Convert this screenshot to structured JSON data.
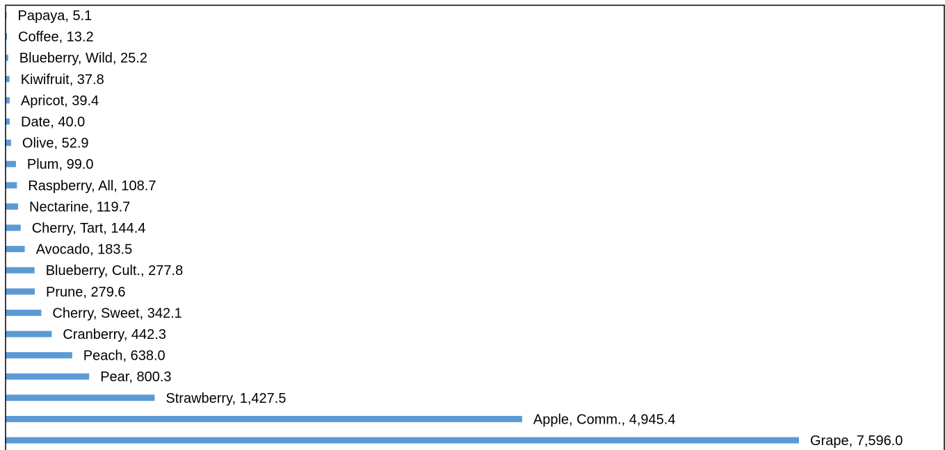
{
  "chart_data": {
    "type": "bar",
    "orientation": "horizontal",
    "title": "",
    "xlabel": "",
    "ylabel": "",
    "grid": false,
    "legend": "none",
    "bar_color": "#5B9BD5",
    "xlim": [
      0,
      7596.0
    ],
    "bars": [
      {
        "category": "Papaya",
        "value": 5.1,
        "label": "Papaya,  5.1"
      },
      {
        "category": "Coffee",
        "value": 13.2,
        "label": "Coffee,  13.2"
      },
      {
        "category": "Blueberry, Wild",
        "value": 25.2,
        "label": "Blueberry, Wild,  25.2"
      },
      {
        "category": "Kiwifruit",
        "value": 37.8,
        "label": "Kiwifruit,  37.8"
      },
      {
        "category": "Apricot",
        "value": 39.4,
        "label": "Apricot,  39.4"
      },
      {
        "category": "Date",
        "value": 40.0,
        "label": "Date,  40.0"
      },
      {
        "category": "Olive",
        "value": 52.9,
        "label": "Olive,  52.9"
      },
      {
        "category": "Plum",
        "value": 99.0,
        "label": "Plum,  99.0"
      },
      {
        "category": "Raspberry, All",
        "value": 108.7,
        "label": "Raspberry, All,  108.7"
      },
      {
        "category": "Nectarine",
        "value": 119.7,
        "label": "Nectarine,  119.7"
      },
      {
        "category": "Cherry, Tart",
        "value": 144.4,
        "label": "Cherry, Tart,  144.4"
      },
      {
        "category": "Avocado",
        "value": 183.5,
        "label": "Avocado,  183.5"
      },
      {
        "category": "Blueberry, Cult.",
        "value": 277.8,
        "label": "Blueberry, Cult.,  277.8"
      },
      {
        "category": "Prune",
        "value": 279.6,
        "label": "Prune,  279.6"
      },
      {
        "category": "Cherry, Sweet",
        "value": 342.1,
        "label": "Cherry, Sweet,  342.1"
      },
      {
        "category": "Cranberry",
        "value": 442.3,
        "label": "Cranberry,  442.3"
      },
      {
        "category": "Peach",
        "value": 638.0,
        "label": "Peach,  638.0"
      },
      {
        "category": "Pear",
        "value": 800.3,
        "label": "Pear,  800.3"
      },
      {
        "category": "Strawberry",
        "value": 1427.5,
        "label": "Strawberry,  1,427.5"
      },
      {
        "category": "Apple, Comm.",
        "value": 4945.4,
        "label": "Apple, Comm.,  4,945.4"
      },
      {
        "category": "Grape",
        "value": 7596.0,
        "label": "Grape,  7,596.0"
      }
    ]
  }
}
